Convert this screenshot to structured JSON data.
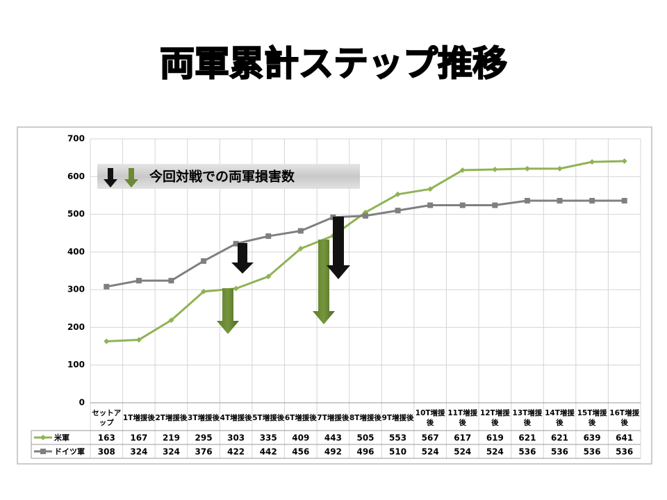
{
  "chart_data": {
    "type": "line",
    "title": "両軍累計ステップ推移",
    "annotation": "今回対戦での両軍損害数",
    "categories": [
      "セットアップ",
      "1T増援後",
      "2T増援後",
      "3T増援後",
      "4T増援後",
      "5T増援後",
      "6T増援後",
      "7T増援後",
      "8T増援後",
      "9T増援後",
      "10T増援後",
      "11T増援後",
      "12T増援後",
      "13T増援後",
      "14T増援後",
      "15T増援後",
      "16T増援後"
    ],
    "series": [
      {
        "name": "米軍",
        "color": "#8fb354",
        "values": [
          163,
          167,
          219,
          295,
          303,
          335,
          409,
          443,
          505,
          553,
          567,
          617,
          619,
          621,
          621,
          639,
          641
        ]
      },
      {
        "name": "ドイツ軍",
        "color": "#7f7f7f",
        "values": [
          308,
          324,
          324,
          376,
          422,
          442,
          456,
          492,
          496,
          510,
          524,
          524,
          524,
          536,
          536,
          536,
          536
        ]
      }
    ],
    "ylim": [
      0,
      700
    ],
    "yticks": [
      0,
      100,
      200,
      300,
      400,
      500,
      600,
      700
    ],
    "grid": true
  }
}
